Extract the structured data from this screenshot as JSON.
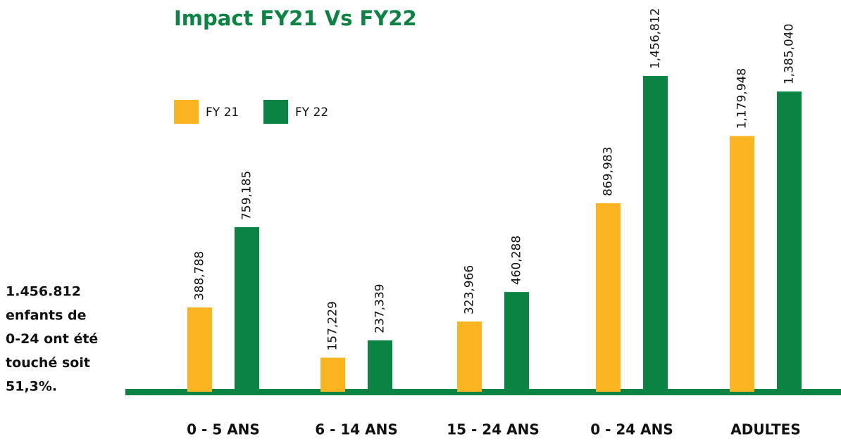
{
  "chart_data": {
    "type": "bar",
    "title": "Impact FY21 Vs FY22",
    "categories": [
      "0 - 5 ANS",
      "6 - 14 ANS",
      "15 - 24 ANS",
      "0 - 24 ANS",
      "ADULTES"
    ],
    "series": [
      {
        "name": "FY 21",
        "color": "#fbb521",
        "values": [
          388788,
          157229,
          323966,
          869983,
          1179948
        ],
        "value_labels": [
          "388,788",
          "157,229",
          "323,966",
          "869,983",
          "1,179,948"
        ]
      },
      {
        "name": "FY 22",
        "color": "#0a8343",
        "values": [
          759185,
          237339,
          460288,
          1456812,
          1385040
        ],
        "value_labels": [
          "759,185",
          "237,339",
          "460,288",
          "1,456,812",
          "1,385,040"
        ]
      }
    ],
    "annotation": [
      "1.456.812",
      "enfants de",
      "0-24 ont été",
      "touché soit",
      "51,3%."
    ]
  }
}
